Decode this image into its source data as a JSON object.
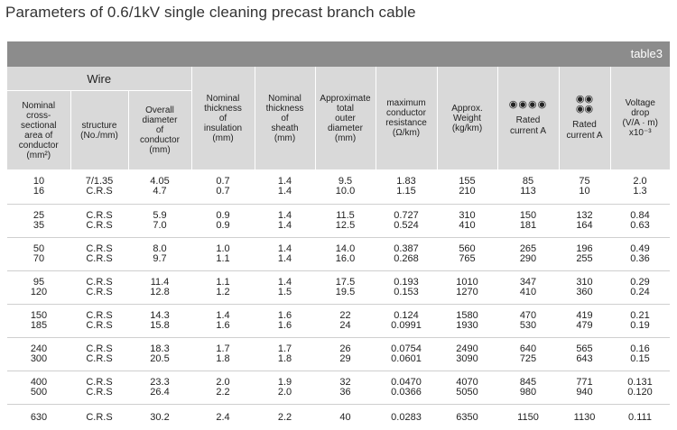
{
  "title": "Parameters of 0.6/1kV single cleaning  precast  branch cable",
  "table_label": "table3",
  "headers": {
    "wire_group": "Wire",
    "area": [
      "Nominal",
      "cross-",
      "sectional",
      "area of",
      "conductor",
      "(mm²)"
    ],
    "structure": [
      "structure",
      "(No./mm)"
    ],
    "overall_diameter": [
      "Overall",
      "diameter",
      "of",
      "conductor",
      "(mm)"
    ],
    "insulation": [
      "Nominal",
      "thickness",
      "of",
      "insulation",
      "(mm)"
    ],
    "sheath": [
      "Nominal",
      "thickness",
      "of",
      "sheath",
      "(mm)"
    ],
    "outer_diameter": [
      "Approximate",
      "total",
      "outer",
      "diameter",
      "(mm)"
    ],
    "resistance": [
      "maximum",
      "conductor",
      "resistance",
      "(Ω/km)"
    ],
    "weight": [
      "Approx.",
      "Weight",
      "(kg/km)"
    ],
    "rated_a": {
      "symbol": "◉◉◉◉",
      "lines": [
        "Rated",
        "current A"
      ]
    },
    "rated_b": {
      "symbol_top": "◉◉",
      "symbol_bottom": "◉◉",
      "lines": [
        "Rated",
        "current A"
      ]
    },
    "voltage_drop": [
      "Voltage",
      "drop",
      "(V/A · m)",
      "x10⁻³"
    ]
  },
  "rows": [
    {
      "area": [
        "10",
        "16"
      ],
      "structure": [
        "7/1.35",
        "C.R.S"
      ],
      "diameter": [
        "4.05",
        "4.7"
      ],
      "insulation": [
        "0.7",
        "0.7"
      ],
      "sheath": [
        "1.4",
        "1.4"
      ],
      "outer": [
        "9.5",
        "10.0"
      ],
      "resistance": [
        "1.83",
        "1.15"
      ],
      "weight": [
        "155",
        "210"
      ],
      "rated_a": [
        "85",
        "113"
      ],
      "rated_b": [
        "75",
        "10"
      ],
      "vdrop": [
        "2.0",
        "1.3"
      ]
    },
    {
      "area": [
        "25",
        "35"
      ],
      "structure": [
        "C.R.S",
        "C.R.S"
      ],
      "diameter": [
        "5.9",
        "7.0"
      ],
      "insulation": [
        "0.9",
        "0.9"
      ],
      "sheath": [
        "1.4",
        "1.4"
      ],
      "outer": [
        "11.5",
        "12.5"
      ],
      "resistance": [
        "0.727",
        "0.524"
      ],
      "weight": [
        "310",
        "410"
      ],
      "rated_a": [
        "150",
        "181"
      ],
      "rated_b": [
        "132",
        "164"
      ],
      "vdrop": [
        "0.84",
        "0.63"
      ]
    },
    {
      "area": [
        "50",
        "70"
      ],
      "structure": [
        "C.R.S",
        "C.R.S"
      ],
      "diameter": [
        "8.0",
        "9.7"
      ],
      "insulation": [
        "1.0",
        "1.1"
      ],
      "sheath": [
        "1.4",
        "1.4"
      ],
      "outer": [
        "14.0",
        "16.0"
      ],
      "resistance": [
        "0.387",
        "0.268"
      ],
      "weight": [
        "560",
        "765"
      ],
      "rated_a": [
        "265",
        "290"
      ],
      "rated_b": [
        "196",
        "255"
      ],
      "vdrop": [
        "0.49",
        "0.36"
      ]
    },
    {
      "area": [
        "95",
        "120"
      ],
      "structure": [
        "C.R.S",
        "C.R.S"
      ],
      "diameter": [
        "11.4",
        "12.8"
      ],
      "insulation": [
        "1.1",
        "1.2"
      ],
      "sheath": [
        "1.4",
        "1.5"
      ],
      "outer": [
        "17.5",
        "19.5"
      ],
      "resistance": [
        "0.193",
        "0.153"
      ],
      "weight": [
        "1010",
        "1270"
      ],
      "rated_a": [
        "347",
        "410"
      ],
      "rated_b": [
        "310",
        "360"
      ],
      "vdrop": [
        "0.29",
        "0.24"
      ]
    },
    {
      "area": [
        "150",
        "185"
      ],
      "structure": [
        "C.R.S",
        "C.R.S"
      ],
      "diameter": [
        "14.3",
        "15.8"
      ],
      "insulation": [
        "1.4",
        "1.6"
      ],
      "sheath": [
        "1.6",
        "1.6"
      ],
      "outer": [
        "22",
        "24"
      ],
      "resistance": [
        "0.124",
        "0.0991"
      ],
      "weight": [
        "1580",
        "1930"
      ],
      "rated_a": [
        "470",
        "530"
      ],
      "rated_b": [
        "419",
        "479"
      ],
      "vdrop": [
        "0.21",
        "0.19"
      ]
    },
    {
      "area": [
        "240",
        "300"
      ],
      "structure": [
        "C.R.S",
        "C.R.S"
      ],
      "diameter": [
        "18.3",
        "20.5"
      ],
      "insulation": [
        "1.7",
        "1.8"
      ],
      "sheath": [
        "1.7",
        "1.8"
      ],
      "outer": [
        "26",
        "29"
      ],
      "resistance": [
        "0.0754",
        "0.0601"
      ],
      "weight": [
        "2490",
        "3090"
      ],
      "rated_a": [
        "640",
        "725"
      ],
      "rated_b": [
        "565",
        "643"
      ],
      "vdrop": [
        "0.16",
        "0.15"
      ]
    },
    {
      "area": [
        "400",
        "500"
      ],
      "structure": [
        "C.R.S",
        "C.R.S"
      ],
      "diameter": [
        "23.3",
        "26.4"
      ],
      "insulation": [
        "2.0",
        "2.2"
      ],
      "sheath": [
        "1.9",
        "2.0"
      ],
      "outer": [
        "32",
        "36"
      ],
      "resistance": [
        "0.0470",
        "0.0366"
      ],
      "weight": [
        "4070",
        "5050"
      ],
      "rated_a": [
        "845",
        "980"
      ],
      "rated_b": [
        "771",
        "940"
      ],
      "vdrop": [
        "0.131",
        "0.120"
      ]
    },
    {
      "area": [
        "630"
      ],
      "structure": [
        "C.R.S"
      ],
      "diameter": [
        "30.2"
      ],
      "insulation": [
        "2.4"
      ],
      "sheath": [
        "2.2"
      ],
      "outer": [
        "40"
      ],
      "resistance": [
        "0.0283"
      ],
      "weight": [
        "6350"
      ],
      "rated_a": [
        "1150"
      ],
      "rated_b": [
        "1130"
      ],
      "vdrop": [
        "0.111"
      ]
    }
  ]
}
